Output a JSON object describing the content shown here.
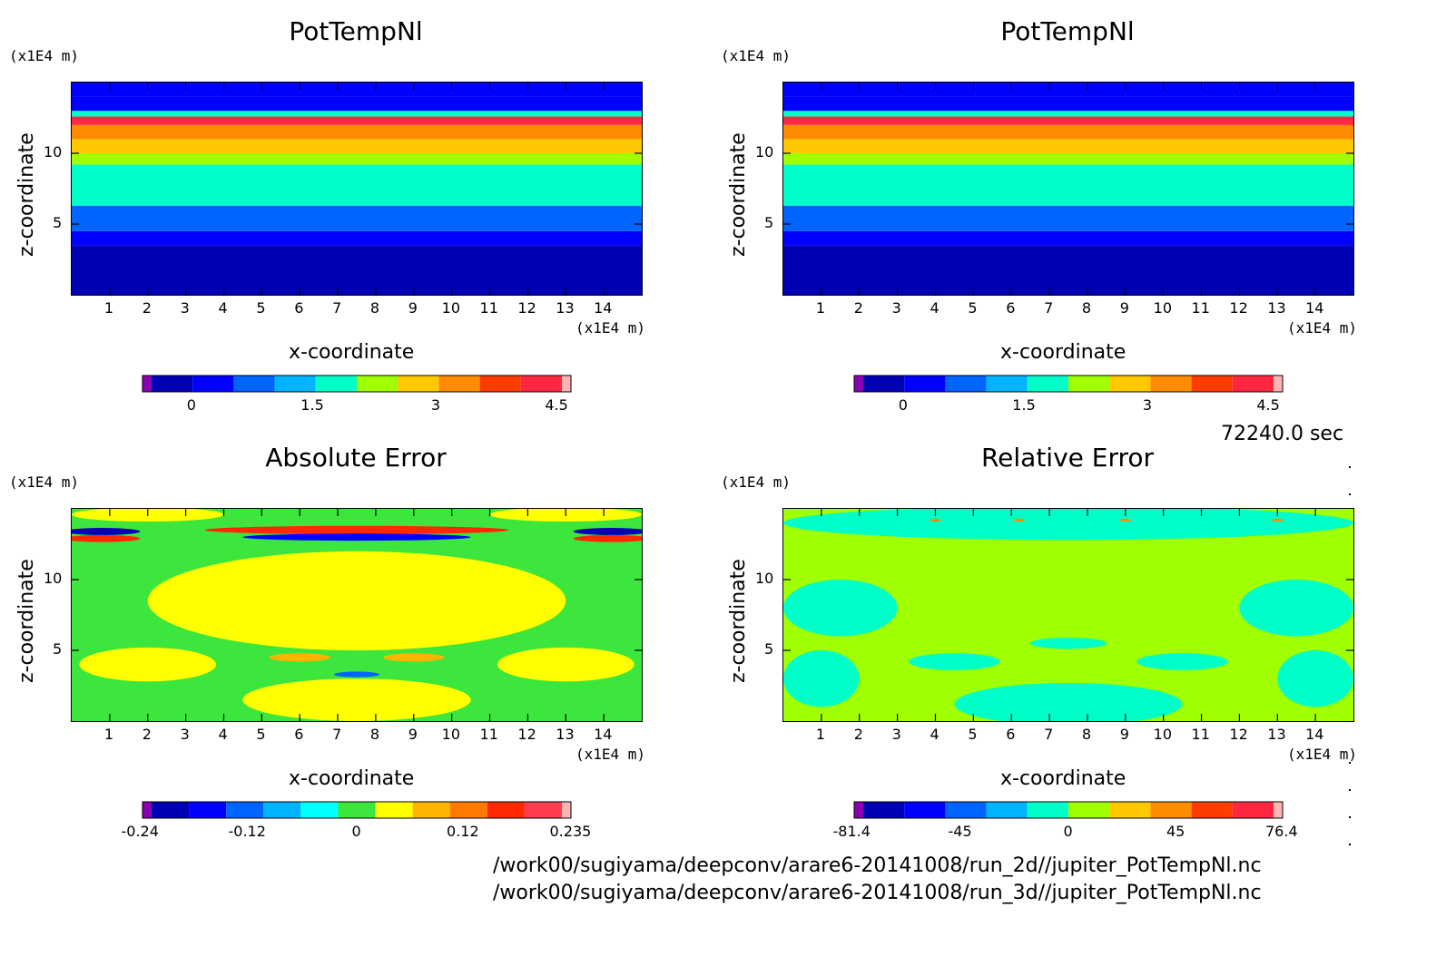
{
  "chart_data": [
    {
      "type": "heatmap",
      "title": "PotTempNl",
      "xlabel": "x-coordinate",
      "ylabel": "z-coordinate",
      "x_unit": "(x1E4 m)",
      "y_unit": "(x1E4 m)",
      "x_ticks": [
        "1",
        "2",
        "3",
        "4",
        "5",
        "6",
        "7",
        "8",
        "9",
        "10",
        "11",
        "12",
        "13",
        "14"
      ],
      "y_ticks": [
        "5",
        "10"
      ],
      "xlim": [
        0,
        15
      ],
      "ylim": [
        0,
        15
      ],
      "colorbar_labels": [
        "0",
        "1.5",
        "3",
        "4.5"
      ],
      "colorbar_colors": [
        "#8a00b4",
        "#0000b4",
        "#0000ff",
        "#0064ff",
        "#00b4ff",
        "#00ffc8",
        "#a0ff00",
        "#ffc800",
        "#ff8c00",
        "#ff3c00",
        "#ff2840",
        "#ffb4b4"
      ],
      "bands": [
        {
          "z0": 0,
          "z1": 3.5,
          "color": "#0000b4"
        },
        {
          "z0": 3.5,
          "z1": 4.5,
          "color": "#0000ff"
        },
        {
          "z0": 4.5,
          "z1": 6.3,
          "color": "#0064ff"
        },
        {
          "z0": 6.3,
          "z1": 9.2,
          "color": "#00ffc8"
        },
        {
          "z0": 9.2,
          "z1": 10.0,
          "color": "#a0ff00"
        },
        {
          "z0": 10.0,
          "z1": 11.0,
          "color": "#ffc800"
        },
        {
          "z0": 11.0,
          "z1": 12.0,
          "color": "#ff8c00"
        },
        {
          "z0": 12.0,
          "z1": 12.6,
          "color": "#ff2840"
        },
        {
          "z0": 12.6,
          "z1": 13.0,
          "color": "#00ffc8"
        },
        {
          "z0": 13.0,
          "z1": 14.0,
          "color": "#0000ff"
        },
        {
          "z0": 14.0,
          "z1": 15.0,
          "color": "#0000ff"
        }
      ]
    },
    {
      "type": "heatmap",
      "title": "PotTempNl",
      "xlabel": "x-coordinate",
      "ylabel": "z-coordinate",
      "x_unit": "(x1E4 m)",
      "y_unit": "(x1E4 m)",
      "x_ticks": [
        "1",
        "2",
        "3",
        "4",
        "5",
        "6",
        "7",
        "8",
        "9",
        "10",
        "11",
        "12",
        "13",
        "14"
      ],
      "y_ticks": [
        "5",
        "10"
      ],
      "xlim": [
        0,
        15
      ],
      "ylim": [
        0,
        15
      ],
      "colorbar_labels": [
        "0",
        "1.5",
        "3",
        "4.5"
      ],
      "colorbar_colors": [
        "#8a00b4",
        "#0000b4",
        "#0000ff",
        "#0064ff",
        "#00b4ff",
        "#00ffc8",
        "#a0ff00",
        "#ffc800",
        "#ff8c00",
        "#ff3c00",
        "#ff2840",
        "#ffb4b4"
      ],
      "bands": [
        {
          "z0": 0,
          "z1": 3.5,
          "color": "#0000b4"
        },
        {
          "z0": 3.5,
          "z1": 4.5,
          "color": "#0000ff"
        },
        {
          "z0": 4.5,
          "z1": 6.3,
          "color": "#0064ff"
        },
        {
          "z0": 6.3,
          "z1": 9.2,
          "color": "#00ffc8"
        },
        {
          "z0": 9.2,
          "z1": 10.0,
          "color": "#a0ff00"
        },
        {
          "z0": 10.0,
          "z1": 11.0,
          "color": "#ffc800"
        },
        {
          "z0": 11.0,
          "z1": 12.0,
          "color": "#ff8c00"
        },
        {
          "z0": 12.0,
          "z1": 12.6,
          "color": "#ff2840"
        },
        {
          "z0": 12.6,
          "z1": 13.0,
          "color": "#00ffc8"
        },
        {
          "z0": 13.0,
          "z1": 14.0,
          "color": "#0000ff"
        },
        {
          "z0": 14.0,
          "z1": 15.0,
          "color": "#0000ff"
        }
      ]
    },
    {
      "type": "heatmap",
      "title": "Absolute Error",
      "xlabel": "x-coordinate",
      "ylabel": "z-coordinate",
      "x_unit": "(x1E4 m)",
      "y_unit": "(x1E4 m)",
      "x_ticks": [
        "1",
        "2",
        "3",
        "4",
        "5",
        "6",
        "7",
        "8",
        "9",
        "10",
        "11",
        "12",
        "13",
        "14"
      ],
      "y_ticks": [
        "5",
        "10"
      ],
      "xlim": [
        0,
        15
      ],
      "ylim": [
        0,
        15
      ],
      "colorbar_labels": [
        "-0.24",
        "-0.12",
        "0",
        "0.12",
        "0.235"
      ],
      "colorbar_colors": [
        "#8a00b4",
        "#0000b4",
        "#0000ff",
        "#0064ff",
        "#00b4ff",
        "#00ffff",
        "#3ce63c",
        "#ffff00",
        "#ffb400",
        "#ff7800",
        "#ff2800",
        "#ff3c50",
        "#ffb4b4"
      ],
      "background": "#3ce63c",
      "blobs": [
        {
          "cx": 7.5,
          "cz": 8.5,
          "rx": 5.5,
          "rz": 3.5,
          "color": "#ffff00"
        },
        {
          "cx": 2.0,
          "cz": 4.0,
          "rx": 1.8,
          "rz": 1.2,
          "color": "#ffff00"
        },
        {
          "cx": 13.0,
          "cz": 4.0,
          "rx": 1.8,
          "rz": 1.2,
          "color": "#ffff00"
        },
        {
          "cx": 7.5,
          "cz": 1.5,
          "rx": 3.0,
          "rz": 1.5,
          "color": "#ffff00"
        },
        {
          "cx": 6.0,
          "cz": 4.5,
          "rx": 0.8,
          "rz": 0.3,
          "color": "#ffb400"
        },
        {
          "cx": 9.0,
          "cz": 4.5,
          "rx": 0.8,
          "rz": 0.3,
          "color": "#ffb400"
        },
        {
          "cx": 7.5,
          "cz": 3.3,
          "rx": 0.6,
          "rz": 0.2,
          "color": "#0064ff"
        },
        {
          "cx": 7.5,
          "cz": 13.5,
          "rx": 4.0,
          "rz": 0.3,
          "color": "#ff2800"
        },
        {
          "cx": 7.5,
          "cz": 13.0,
          "rx": 3.0,
          "rz": 0.25,
          "color": "#0000ff"
        },
        {
          "cx": 0.8,
          "cz": 13.4,
          "rx": 1.0,
          "rz": 0.25,
          "color": "#0000b4"
        },
        {
          "cx": 14.2,
          "cz": 13.4,
          "rx": 1.0,
          "rz": 0.25,
          "color": "#0000b4"
        },
        {
          "cx": 0.8,
          "cz": 12.9,
          "rx": 1.0,
          "rz": 0.25,
          "color": "#ff2800"
        },
        {
          "cx": 14.2,
          "cz": 12.9,
          "rx": 1.0,
          "rz": 0.25,
          "color": "#ff2800"
        },
        {
          "cx": 2.0,
          "cz": 14.6,
          "rx": 2.0,
          "rz": 0.5,
          "color": "#ffff00"
        },
        {
          "cx": 13.0,
          "cz": 14.6,
          "rx": 2.0,
          "rz": 0.5,
          "color": "#ffff00"
        }
      ]
    },
    {
      "type": "heatmap",
      "title": "Relative Error",
      "xlabel": "x-coordinate",
      "ylabel": "z-coordinate",
      "x_unit": "(x1E4 m)",
      "y_unit": "(x1E4 m)",
      "x_ticks": [
        "1",
        "2",
        "3",
        "4",
        "5",
        "6",
        "7",
        "8",
        "9",
        "10",
        "11",
        "12",
        "13",
        "14"
      ],
      "y_ticks": [
        "5",
        "10"
      ],
      "xlim": [
        0,
        15
      ],
      "ylim": [
        0,
        15
      ],
      "colorbar_labels": [
        "-81.4",
        "-45",
        "0",
        "45",
        "76.4"
      ],
      "colorbar_colors": [
        "#8a00b4",
        "#0000b4",
        "#0000ff",
        "#0064ff",
        "#00b4ff",
        "#00ffc8",
        "#a0ff00",
        "#ffc800",
        "#ff8c00",
        "#ff3c00",
        "#ff2840",
        "#ffb4b4"
      ],
      "background": "#a0ff00",
      "blobs": [
        {
          "cx": 7.5,
          "cz": 14.0,
          "rx": 7.5,
          "rz": 1.2,
          "color": "#00ffc8"
        },
        {
          "cx": 1.5,
          "cz": 8.0,
          "rx": 1.5,
          "rz": 2.0,
          "color": "#00ffc8"
        },
        {
          "cx": 13.5,
          "cz": 8.0,
          "rx": 1.5,
          "rz": 2.0,
          "color": "#00ffc8"
        },
        {
          "cx": 1.0,
          "cz": 3.0,
          "rx": 1.0,
          "rz": 2.0,
          "color": "#00ffc8"
        },
        {
          "cx": 14.0,
          "cz": 3.0,
          "rx": 1.0,
          "rz": 2.0,
          "color": "#00ffc8"
        },
        {
          "cx": 7.5,
          "cz": 1.2,
          "rx": 3.0,
          "rz": 1.5,
          "color": "#00ffc8"
        },
        {
          "cx": 4.5,
          "cz": 4.2,
          "rx": 1.2,
          "rz": 0.6,
          "color": "#00ffc8"
        },
        {
          "cx": 10.5,
          "cz": 4.2,
          "rx": 1.2,
          "rz": 0.6,
          "color": "#00ffc8"
        },
        {
          "cx": 7.5,
          "cz": 5.5,
          "rx": 1.0,
          "rz": 0.4,
          "color": "#00ffc8"
        },
        {
          "cx": 4.0,
          "cz": 14.2,
          "rx": 0.15,
          "rz": 0.1,
          "color": "#ff8c00"
        },
        {
          "cx": 6.2,
          "cz": 14.2,
          "rx": 0.15,
          "rz": 0.1,
          "color": "#ff8c00"
        },
        {
          "cx": 9.0,
          "cz": 14.2,
          "rx": 0.15,
          "rz": 0.1,
          "color": "#ff8c00"
        },
        {
          "cx": 13.0,
          "cz": 14.2,
          "rx": 0.15,
          "rz": 0.1,
          "color": "#ff8c00"
        }
      ]
    }
  ],
  "footer": {
    "timestamp": "72240.0 sec",
    "path1": "/work00/sugiyama/deepconv/arare6-20141008/run_2d//jupiter_PotTempNl.nc",
    "path2": "/work00/sugiyama/deepconv/arare6-20141008/run_3d//jupiter_PotTempNl.nc"
  }
}
